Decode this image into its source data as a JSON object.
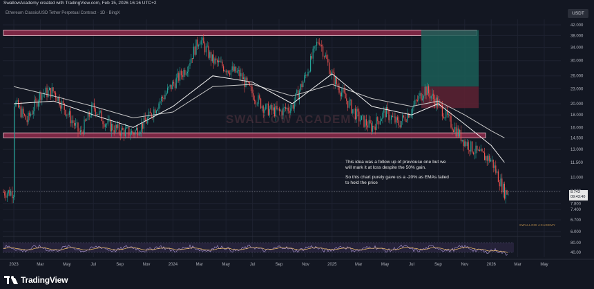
{
  "header": {
    "credit": "SwallowAcademy created with TradingView.com, Feb 15, 2026 16:16 UTC+2",
    "symbol": "Ethereum Classic/USD Tether Perpetual Contract · 1D · BingX",
    "currency_button": "USDT"
  },
  "annotation": {
    "para1": "This idea was a follow up of previouse one but we will mark it at loss despite the 50% gain.",
    "para2": "So this chart purely gave us a -20% as EMAs failed to hold the price"
  },
  "watermark": "SWALLOW ACADEMY",
  "signature": "SWALLOW ACADEMY",
  "price_tag": {
    "price": "8.743",
    "countdown": "09:43:40"
  },
  "footer": {
    "logo_text": "TradingView"
  },
  "colors": {
    "background": "#131722",
    "bull": "#26a69a",
    "bear": "#ef5350",
    "zone_fill": "#8e2a4a",
    "zone_border": "#f7c6d4",
    "ema_fast": "#f0f0f0",
    "ema_slow": "#c8c8c8",
    "tp_zone": "#1b5e57",
    "sl_zone": "#5e2233",
    "rsi": "#b39ddb",
    "rsi_ma": "#f5c26b",
    "rsi_band": "#2a2540"
  },
  "chart_data": {
    "type": "candlestick",
    "y_scale": "log",
    "y_ticks": [
      "42.000",
      "38.000",
      "34.000",
      "30.000",
      "26.000",
      "23.000",
      "20.000",
      "18.000",
      "16.000",
      "14.500",
      "13.000",
      "11.500",
      "10.000",
      "8.800",
      "7.800",
      "7.400",
      "6.700",
      "6.000"
    ],
    "y_tick_values": [
      42,
      38,
      34,
      30,
      26,
      23,
      20,
      18,
      16,
      14.5,
      13,
      11.5,
      10,
      8.8,
      7.8,
      7.4,
      6.7,
      6.0
    ],
    "x_ticks": [
      "2023",
      "Mar",
      "May",
      "Jul",
      "Sep",
      "Nov",
      "2024",
      "Mar",
      "May",
      "Jul",
      "Sep",
      "Nov",
      "2025",
      "Mar",
      "May",
      "Jul",
      "Sep",
      "Nov",
      "2026",
      "Mar",
      "May"
    ],
    "x_tick_months": [
      "2023-01",
      "2023-03",
      "2023-05",
      "2023-07",
      "2023-09",
      "2023-11",
      "2024-01",
      "2024-03",
      "2024-05",
      "2024-07",
      "2024-09",
      "2024-11",
      "2025-01",
      "2025-03",
      "2025-05",
      "2025-07",
      "2025-09",
      "2025-11",
      "2026-01",
      "2026-03",
      "2026-05"
    ],
    "rsi_ticks": [
      "80.00",
      "40.00"
    ],
    "rsi_tick_values": [
      80,
      40
    ],
    "zones": [
      {
        "name": "resistance",
        "low": 38.0,
        "high": 40.0
      },
      {
        "name": "support",
        "low": 14.5,
        "high": 15.2
      }
    ],
    "position": {
      "entry": 19.2,
      "target": 40.0,
      "stop": 23.5
    },
    "price_path": [
      {
        "t": "2023-01",
        "price": 20.5
      },
      {
        "t": "2023-02",
        "price": 17.0
      },
      {
        "t": "2023-03",
        "price": 22.0
      },
      {
        "t": "2023-04",
        "price": 22.5
      },
      {
        "t": "2023-05",
        "price": 18.5
      },
      {
        "t": "2023-06",
        "price": 15.0
      },
      {
        "t": "2023-07",
        "price": 19.5
      },
      {
        "t": "2023-08",
        "price": 16.5
      },
      {
        "t": "2023-09",
        "price": 15.5
      },
      {
        "t": "2023-10",
        "price": 15.2
      },
      {
        "t": "2023-11",
        "price": 17.0
      },
      {
        "t": "2023-12",
        "price": 20.5
      },
      {
        "t": "2024-01",
        "price": 24.0
      },
      {
        "t": "2024-02",
        "price": 28.0
      },
      {
        "t": "2024-03",
        "price": 37.0
      },
      {
        "t": "2024-04",
        "price": 30.0
      },
      {
        "t": "2024-05",
        "price": 28.0
      },
      {
        "t": "2024-06",
        "price": 26.5
      },
      {
        "t": "2024-07",
        "price": 22.0
      },
      {
        "t": "2024-08",
        "price": 19.0
      },
      {
        "t": "2024-09",
        "price": 18.5
      },
      {
        "t": "2024-10",
        "price": 19.5
      },
      {
        "t": "2024-11",
        "price": 26.0
      },
      {
        "t": "2024-12",
        "price": 37.0
      },
      {
        "t": "2025-01",
        "price": 26.0
      },
      {
        "t": "2025-02",
        "price": 21.0
      },
      {
        "t": "2025-03",
        "price": 17.5
      },
      {
        "t": "2025-04",
        "price": 16.0
      },
      {
        "t": "2025-05",
        "price": 18.5
      },
      {
        "t": "2025-06",
        "price": 16.5
      },
      {
        "t": "2025-07",
        "price": 19.0
      },
      {
        "t": "2025-08",
        "price": 23.0
      },
      {
        "t": "2025-09",
        "price": 20.0
      },
      {
        "t": "2025-10",
        "price": 16.5
      },
      {
        "t": "2025-11",
        "price": 14.0
      },
      {
        "t": "2025-12",
        "price": 12.5
      },
      {
        "t": "2026-01",
        "price": 11.8
      },
      {
        "t": "2026-02",
        "price": 8.7
      }
    ],
    "ema_fast": [
      {
        "t": "2023-01",
        "price": 20.0
      },
      {
        "t": "2023-04",
        "price": 20.5
      },
      {
        "t": "2023-07",
        "price": 18.0
      },
      {
        "t": "2023-10",
        "price": 16.0
      },
      {
        "t": "2024-01",
        "price": 19.5
      },
      {
        "t": "2024-04",
        "price": 26.0
      },
      {
        "t": "2024-07",
        "price": 24.5
      },
      {
        "t": "2024-10",
        "price": 20.0
      },
      {
        "t": "2025-01",
        "price": 26.5
      },
      {
        "t": "2025-04",
        "price": 19.5
      },
      {
        "t": "2025-07",
        "price": 18.0
      },
      {
        "t": "2025-09",
        "price": 20.0
      },
      {
        "t": "2025-11",
        "price": 16.5
      },
      {
        "t": "2026-01",
        "price": 13.5
      },
      {
        "t": "2026-02",
        "price": 11.5
      }
    ],
    "ema_slow": [
      {
        "t": "2023-01",
        "price": 23.5
      },
      {
        "t": "2023-04",
        "price": 21.5
      },
      {
        "t": "2023-07",
        "price": 19.5
      },
      {
        "t": "2023-10",
        "price": 17.5
      },
      {
        "t": "2024-01",
        "price": 18.5
      },
      {
        "t": "2024-04",
        "price": 23.5
      },
      {
        "t": "2024-07",
        "price": 24.0
      },
      {
        "t": "2024-10",
        "price": 21.5
      },
      {
        "t": "2025-01",
        "price": 24.0
      },
      {
        "t": "2025-04",
        "price": 21.0
      },
      {
        "t": "2025-07",
        "price": 19.5
      },
      {
        "t": "2025-09",
        "price": 20.5
      },
      {
        "t": "2025-11",
        "price": 18.0
      },
      {
        "t": "2026-01",
        "price": 15.5
      },
      {
        "t": "2026-02",
        "price": 14.5
      }
    ],
    "rsi_range": [
      20,
      100
    ]
  }
}
